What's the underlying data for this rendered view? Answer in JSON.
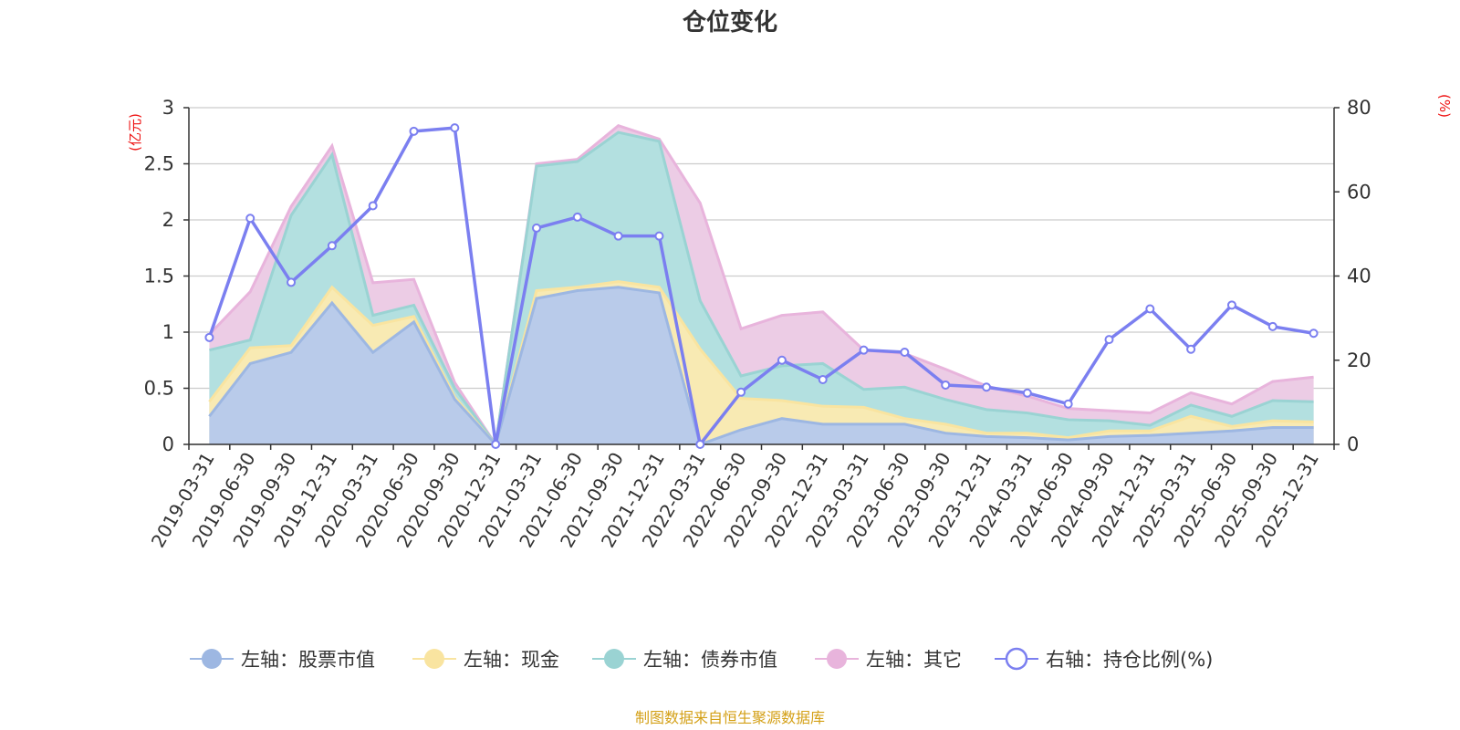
{
  "chart_data": {
    "type": "area",
    "title": "仓位变化",
    "left_unit": "(亿元)",
    "right_unit": "(%)",
    "left_axis": {
      "min": 0,
      "max": 3,
      "ticks": [
        0,
        0.5,
        1,
        1.5,
        2,
        2.5,
        3
      ],
      "tick_labels": [
        "0",
        "0.5",
        "1",
        "1.5",
        "2",
        "2.5",
        "3"
      ]
    },
    "right_axis": {
      "min": 0,
      "max": 80,
      "ticks": [
        0,
        20,
        40,
        60,
        80
      ],
      "tick_labels": [
        "0",
        "20",
        "40",
        "60",
        "80"
      ]
    },
    "categories": [
      "2019-03-31",
      "2019-06-30",
      "2019-09-30",
      "2019-12-31",
      "2020-03-31",
      "2020-06-30",
      "2020-09-30",
      "2020-12-31",
      "2021-03-31",
      "2021-06-30",
      "2021-09-30",
      "2021-12-31",
      "2022-03-31",
      "2022-06-30",
      "2022-09-30",
      "2022-12-31",
      "2023-03-31",
      "2023-06-30",
      "2023-09-30",
      "2023-12-31",
      "2024-03-31",
      "2024-06-30",
      "2024-09-30",
      "2024-12-31",
      "2025-03-31",
      "2025-06-30",
      "2025-09-30",
      "2025-12-31"
    ],
    "series": [
      {
        "name": "左轴：股票市值",
        "axis": "left",
        "color": "#9db7e2",
        "fill": "#b9cbea",
        "values": [
          0.25,
          0.72,
          0.82,
          1.26,
          0.82,
          1.09,
          0.4,
          0,
          1.3,
          1.37,
          1.4,
          1.35,
          0,
          0.13,
          0.23,
          0.18,
          0.18,
          0.18,
          0.1,
          0.07,
          0.06,
          0.04,
          0.07,
          0.08,
          0.1,
          0.12,
          0.15,
          0.15
        ]
      },
      {
        "name": "左轴：现金",
        "axis": "left",
        "color": "#f9e4a0",
        "fill": "#f8eab3",
        "values": [
          0.13,
          0.14,
          0.06,
          0.14,
          0.24,
          0.05,
          0.02,
          0,
          0.07,
          0.03,
          0.05,
          0.05,
          0.85,
          0.28,
          0.16,
          0.16,
          0.15,
          0.05,
          0.08,
          0.03,
          0.04,
          0.02,
          0.05,
          0.04,
          0.15,
          0.04,
          0.06,
          0.05
        ]
      },
      {
        "name": "左轴：债券市值",
        "axis": "left",
        "color": "#9ad3d3",
        "fill": "#b3e0e0",
        "values": [
          0.46,
          0.07,
          1.16,
          1.18,
          0.09,
          0.1,
          0.08,
          0,
          1.11,
          1.12,
          1.33,
          1.3,
          0.43,
          0.2,
          0.31,
          0.38,
          0.16,
          0.28,
          0.22,
          0.21,
          0.18,
          0.16,
          0.09,
          0.05,
          0.1,
          0.09,
          0.18,
          0.18
        ]
      },
      {
        "name": "左轴：其它",
        "axis": "left",
        "color": "#e8b4dc",
        "fill": "#ecccE5",
        "values": [
          0.14,
          0.43,
          0.08,
          0.08,
          0.29,
          0.23,
          0.05,
          0,
          0.02,
          0.02,
          0.06,
          0.02,
          0.87,
          0.42,
          0.45,
          0.46,
          0.35,
          0.3,
          0.27,
          0.21,
          0.15,
          0.1,
          0.09,
          0.11,
          0.11,
          0.11,
          0.17,
          0.22
        ]
      },
      {
        "name": "右轴：持仓比例(%)",
        "axis": "right",
        "type": "line",
        "color": "#7b7ff0",
        "values": [
          25.4,
          53.7,
          38.5,
          47.2,
          56.7,
          74.4,
          75.2,
          0,
          51.4,
          54.0,
          49.5,
          49.5,
          0,
          12.4,
          20.0,
          15.4,
          22.4,
          21.9,
          14.1,
          13.6,
          12.2,
          9.6,
          24.9,
          32.2,
          22.6,
          33.1,
          28.0,
          26.4
        ]
      }
    ]
  },
  "legend": [
    {
      "label": "左轴：股票市值",
      "color": "#9db7e2",
      "kind": "area"
    },
    {
      "label": "左轴：现金",
      "color": "#f9e4a0",
      "kind": "area"
    },
    {
      "label": "左轴：债券市值",
      "color": "#9ad3d3",
      "kind": "area"
    },
    {
      "label": "左轴：其它",
      "color": "#e8b4dc",
      "kind": "area"
    },
    {
      "label": "右轴：持仓比例(%)",
      "color": "#7b7ff0",
      "kind": "line"
    }
  ],
  "source_note": "制图数据来自恒生聚源数据库"
}
